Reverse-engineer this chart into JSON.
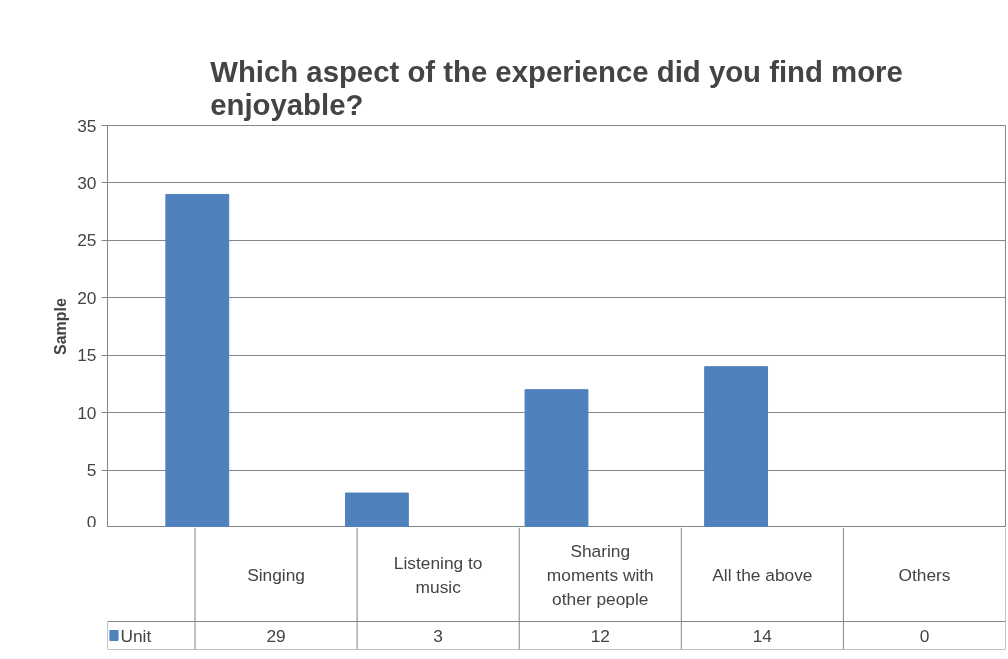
{
  "chart_data": {
    "type": "bar",
    "title": "Which aspect of the experience did you find more enjoyable?",
    "ylabel": "Sample",
    "categories": [
      "Singing",
      "Listening to music",
      "Sharing moments with other people",
      "All the above",
      "Others"
    ],
    "series": [
      {
        "name": "Unit",
        "color": "#4f81bd",
        "values": [
          29,
          3,
          12,
          14,
          0
        ]
      }
    ],
    "ylim": [
      0,
      35
    ],
    "yticks": [
      0,
      5,
      10,
      15,
      20,
      25,
      30,
      35
    ],
    "grid": "y",
    "legend": "bottom",
    "data_labels": true
  }
}
